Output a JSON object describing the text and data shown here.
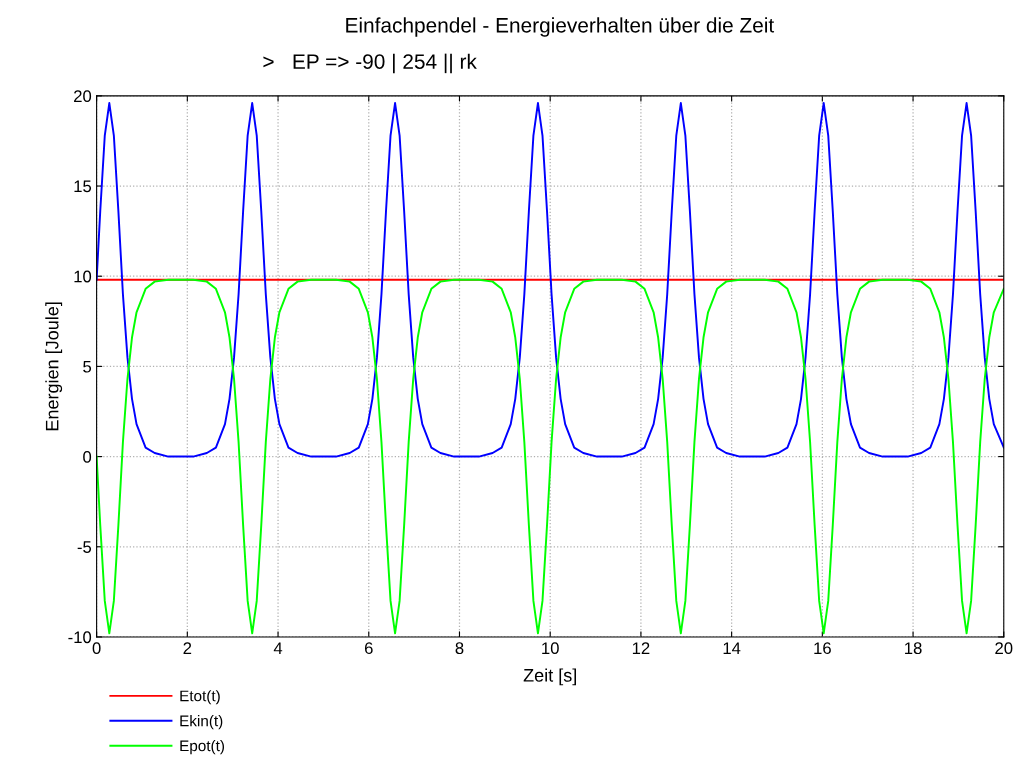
{
  "chart_data": {
    "type": "line",
    "title": "Einfachpendel - Energieverhalten über die Zeit",
    "subtitle": ">   EP => -90 | 254 || rk",
    "xlabel": "Zeit [s]",
    "ylabel": "Energien [Joule]",
    "x": [
      0,
      0.08,
      0.18,
      0.28,
      0.38,
      0.48,
      0.58,
      0.68,
      0.78,
      0.88,
      1.08,
      1.28,
      1.58,
      1.855,
      2.13,
      2.43,
      2.63,
      2.83,
      2.93,
      3.03,
      3.13,
      3.23,
      3.33,
      3.43,
      3.53,
      3.63,
      3.73,
      3.83,
      3.93,
      4.03,
      4.23,
      4.43,
      4.73,
      5.005,
      5.28,
      5.58,
      5.78,
      5.98,
      6.08,
      6.18,
      6.28,
      6.38,
      6.48,
      6.58,
      6.68,
      6.78,
      6.88,
      6.98,
      7.08,
      7.18,
      7.38,
      7.58,
      7.88,
      8.155,
      8.43,
      8.73,
      8.93,
      9.13,
      9.23,
      9.33,
      9.43,
      9.53,
      9.63,
      9.73,
      9.83,
      9.93,
      10.03,
      10.13,
      10.23,
      10.33,
      10.53,
      10.73,
      11.03,
      11.305,
      11.58,
      11.88,
      12.08,
      12.28,
      12.38,
      12.48,
      12.58,
      12.68,
      12.78,
      12.88,
      12.98,
      13.08,
      13.18,
      13.28,
      13.38,
      13.48,
      13.68,
      13.88,
      14.18,
      14.455,
      14.73,
      15.03,
      15.23,
      15.43,
      15.53,
      15.63,
      15.73,
      15.83,
      15.93,
      16.03,
      16.13,
      16.23,
      16.33,
      16.43,
      16.53,
      16.63,
      16.83,
      17.03,
      17.33,
      17.605,
      17.88,
      18.18,
      18.38,
      18.58,
      18.68,
      18.78,
      18.88,
      18.98,
      19.08,
      19.18,
      19.28,
      19.38,
      19.48,
      19.58,
      19.68,
      19.78,
      20
    ],
    "series": [
      {
        "name": "Etot(t)",
        "color": "#ff0000",
        "x": [
          0,
          20
        ],
        "values": [
          9.8,
          9.8
        ]
      },
      {
        "name": "Ekin(t)",
        "color": "#0000ff",
        "values": [
          9.8,
          13.6,
          17.8,
          19.6,
          17.8,
          13.6,
          9,
          5.5,
          3.2,
          1.8,
          0.5,
          0.2,
          0,
          0,
          0,
          0.2,
          0.5,
          1.8,
          3.2,
          5.5,
          9,
          13.6,
          17.8,
          19.6,
          17.8,
          13.6,
          9,
          5.5,
          3.2,
          1.8,
          0.5,
          0.2,
          0,
          0,
          0,
          0.2,
          0.5,
          1.8,
          3.2,
          5.5,
          9,
          13.6,
          17.8,
          19.6,
          17.8,
          13.6,
          9,
          5.5,
          3.2,
          1.8,
          0.5,
          0.2,
          0,
          0,
          0,
          0.2,
          0.5,
          1.8,
          3.2,
          5.5,
          9,
          13.6,
          17.8,
          19.6,
          17.8,
          13.6,
          9,
          5.5,
          3.2,
          1.8,
          0.5,
          0.2,
          0,
          0,
          0,
          0.2,
          0.5,
          1.8,
          3.2,
          5.5,
          9,
          13.6,
          17.8,
          19.6,
          17.8,
          13.6,
          9,
          5.5,
          3.2,
          1.8,
          0.5,
          0.2,
          0,
          0,
          0,
          0.2,
          0.5,
          1.8,
          3.2,
          5.5,
          9,
          13.6,
          17.8,
          19.6,
          17.8,
          13.6,
          9,
          5.5,
          3.2,
          1.8,
          0.5,
          0.2,
          0,
          0,
          0,
          0.2,
          0.5,
          1.8,
          3.2,
          5.5,
          9,
          13.6,
          17.8,
          19.6,
          17.8,
          13.6,
          9,
          5.5,
          3.2,
          1.8,
          0.5
        ]
      },
      {
        "name": "Epot(t)",
        "color": "#00ff00",
        "values": [
          0,
          -3.8,
          -8,
          -9.8,
          -8,
          -3.8,
          0.8,
          4.3,
          6.6,
          8,
          9.3,
          9.7,
          9.8,
          9.8,
          9.8,
          9.7,
          9.3,
          8,
          6.6,
          4.3,
          0.8,
          -3.8,
          -8,
          -9.8,
          -8,
          -3.8,
          0.8,
          4.3,
          6.6,
          8,
          9.3,
          9.7,
          9.8,
          9.8,
          9.8,
          9.7,
          9.3,
          8,
          6.6,
          4.3,
          0.8,
          -3.8,
          -8,
          -9.8,
          -8,
          -3.8,
          0.8,
          4.3,
          6.6,
          8,
          9.3,
          9.7,
          9.8,
          9.8,
          9.8,
          9.7,
          9.3,
          8,
          6.6,
          4.3,
          0.8,
          -3.8,
          -8,
          -9.8,
          -8,
          -3.8,
          0.8,
          4.3,
          6.6,
          8,
          9.3,
          9.7,
          9.8,
          9.8,
          9.8,
          9.7,
          9.3,
          8,
          6.6,
          4.3,
          0.8,
          -3.8,
          -8,
          -9.8,
          -8,
          -3.8,
          0.8,
          4.3,
          6.6,
          8,
          9.3,
          9.7,
          9.8,
          9.8,
          9.8,
          9.7,
          9.3,
          8,
          6.6,
          4.3,
          0.8,
          -3.8,
          -8,
          -9.8,
          -8,
          -3.8,
          0.8,
          4.3,
          6.6,
          8,
          9.3,
          9.7,
          9.8,
          9.8,
          9.8,
          9.7,
          9.3,
          8,
          6.6,
          4.3,
          0.8,
          -3.8,
          -8,
          -9.8,
          -8,
          -3.8,
          0.8,
          4.3,
          6.6,
          8,
          9.3
        ]
      }
    ],
    "xlim": [
      0,
      20
    ],
    "xticks": [
      0,
      2,
      4,
      6,
      8,
      10,
      12,
      14,
      16,
      18,
      20
    ],
    "ylim": [
      -10,
      20
    ],
    "yticks": [
      -10,
      -5,
      0,
      5,
      10,
      15,
      20
    ],
    "grid": true,
    "legend": "bottom left",
    "marker": "none",
    "line_style": "solid"
  }
}
